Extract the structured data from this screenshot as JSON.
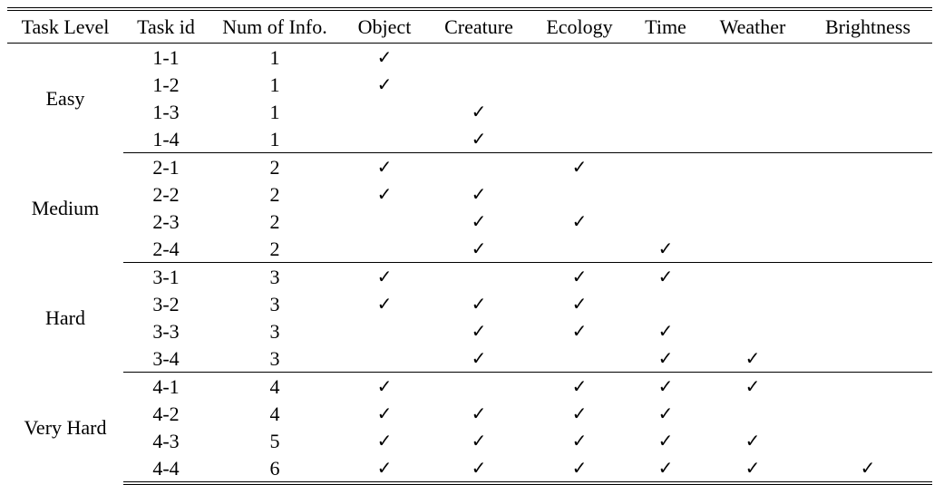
{
  "table": {
    "headers": [
      "Task Level",
      "Task id",
      "Num of Info.",
      "Object",
      "Creature",
      "Ecology",
      "Time",
      "Weather",
      "Brightness"
    ],
    "check_symbol": "✓",
    "groups": [
      {
        "level": "Easy",
        "rows": [
          {
            "id": "1-1",
            "num": "1",
            "checks": [
              true,
              false,
              false,
              false,
              false,
              false
            ]
          },
          {
            "id": "1-2",
            "num": "1",
            "checks": [
              true,
              false,
              false,
              false,
              false,
              false
            ]
          },
          {
            "id": "1-3",
            "num": "1",
            "checks": [
              false,
              true,
              false,
              false,
              false,
              false
            ]
          },
          {
            "id": "1-4",
            "num": "1",
            "checks": [
              false,
              true,
              false,
              false,
              false,
              false
            ]
          }
        ]
      },
      {
        "level": "Medium",
        "rows": [
          {
            "id": "2-1",
            "num": "2",
            "checks": [
              true,
              false,
              true,
              false,
              false,
              false
            ]
          },
          {
            "id": "2-2",
            "num": "2",
            "checks": [
              true,
              true,
              false,
              false,
              false,
              false
            ]
          },
          {
            "id": "2-3",
            "num": "2",
            "checks": [
              false,
              true,
              true,
              false,
              false,
              false
            ]
          },
          {
            "id": "2-4",
            "num": "2",
            "checks": [
              false,
              true,
              false,
              true,
              false,
              false
            ]
          }
        ]
      },
      {
        "level": "Hard",
        "rows": [
          {
            "id": "3-1",
            "num": "3",
            "checks": [
              true,
              false,
              true,
              true,
              false,
              false
            ]
          },
          {
            "id": "3-2",
            "num": "3",
            "checks": [
              true,
              true,
              true,
              false,
              false,
              false
            ]
          },
          {
            "id": "3-3",
            "num": "3",
            "checks": [
              false,
              true,
              true,
              true,
              false,
              false
            ]
          },
          {
            "id": "3-4",
            "num": "3",
            "checks": [
              false,
              true,
              false,
              true,
              true,
              false
            ]
          }
        ]
      },
      {
        "level": "Very Hard",
        "rows": [
          {
            "id": "4-1",
            "num": "4",
            "checks": [
              true,
              false,
              true,
              true,
              true,
              false
            ]
          },
          {
            "id": "4-2",
            "num": "4",
            "checks": [
              true,
              true,
              true,
              true,
              false,
              false
            ]
          },
          {
            "id": "4-3",
            "num": "5",
            "checks": [
              true,
              true,
              true,
              true,
              true,
              false
            ]
          },
          {
            "id": "4-4",
            "num": "6",
            "checks": [
              true,
              true,
              true,
              true,
              true,
              true
            ]
          }
        ]
      }
    ]
  }
}
